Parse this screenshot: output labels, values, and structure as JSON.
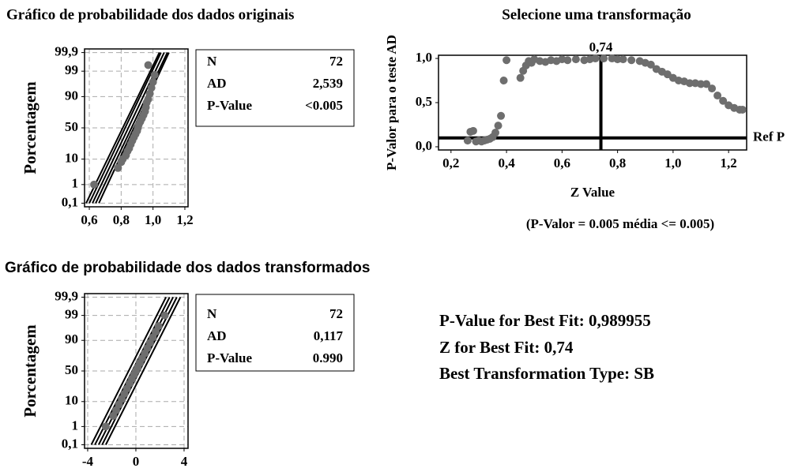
{
  "chart_data": [
    {
      "type": "probability",
      "title": "Gráfico de probabilidade dos dados originais",
      "ylabel": "Porcentagem",
      "xlim": [
        0.57,
        1.22
      ],
      "xticks": [
        {
          "value": 0.6,
          "label": "0,6"
        },
        {
          "value": 0.8,
          "label": "0,8"
        },
        {
          "value": 1.0,
          "label": "1,0"
        },
        {
          "value": 1.2,
          "label": "1,2"
        }
      ],
      "ylim": [
        0.06,
        99.94
      ],
      "yticks": [
        {
          "value": 0.1,
          "label": "0,1"
        },
        1,
        10,
        50,
        90,
        99,
        {
          "value": 99.9,
          "label": "99,9"
        }
      ],
      "yscale": "probability",
      "grid": true,
      "color": "#6e6e6e",
      "line_color": "#000000",
      "x": [
        0.63,
        0.78,
        0.8,
        0.81,
        0.83,
        0.84,
        0.85,
        0.86,
        0.87,
        0.88,
        0.89,
        0.9,
        0.905,
        0.91,
        0.92,
        0.93,
        0.94,
        0.95,
        0.955,
        0.96,
        0.97,
        0.98,
        0.99,
        1.0,
        1.01,
        0.97
      ],
      "values": [
        1,
        5,
        8,
        10,
        13,
        17,
        20,
        25,
        30,
        35,
        40,
        45,
        50,
        55,
        60,
        65,
        70,
        75,
        80,
        85,
        88,
        92,
        95,
        97,
        98.5,
        99.5
      ],
      "lines": [
        {
          "x": [
            0.62,
            1.07
          ],
          "values": [
            0.1,
            99.9
          ]
        },
        {
          "x": [
            0.6,
            1.05
          ],
          "values": [
            0.1,
            99.9
          ]
        },
        {
          "x": [
            0.64,
            1.09
          ],
          "values": [
            0.1,
            99.9
          ]
        },
        {
          "x": [
            0.58,
            1.04
          ],
          "values": [
            0.1,
            99.9
          ]
        },
        {
          "x": [
            0.66,
            1.1
          ],
          "values": [
            0.1,
            99.9
          ]
        }
      ]
    },
    {
      "type": "scatter",
      "title": "Selecione uma transformação",
      "xlabel": "Z Value",
      "ylabel": "P-Valor para o teste AD",
      "note": "(P-Valor = 0.005 média <= 0.005)",
      "xlim": [
        0.155,
        1.265
      ],
      "xticks": [
        {
          "value": 0.2,
          "label": "0,2"
        },
        {
          "value": 0.4,
          "label": "0,4"
        },
        {
          "value": 0.6,
          "label": "0,6"
        },
        {
          "value": 0.8,
          "label": "0,8"
        },
        {
          "value": 1.0,
          "label": "1,0"
        },
        {
          "value": 1.2,
          "label": "1,2"
        }
      ],
      "ylim": [
        -0.036,
        1.036
      ],
      "yticks": [
        {
          "value": 0,
          "label": "0,0"
        },
        {
          "value": 0.5,
          "label": "0,5"
        },
        {
          "value": 1.0,
          "label": "1,0"
        }
      ],
      "grid": false,
      "color": "#6e6e6e",
      "line_color": "#000000",
      "vline": {
        "value": 0.74,
        "label": "0,74"
      },
      "hline": {
        "value": 0.1,
        "label": "Ref P"
      },
      "x": [
        0.26,
        0.27,
        0.28,
        0.29,
        0.3,
        0.31,
        0.32,
        0.33,
        0.34,
        0.35,
        0.36,
        0.37,
        0.38,
        0.39,
        0.4,
        0.45,
        0.46,
        0.47,
        0.48,
        0.49,
        0.5,
        0.52,
        0.54,
        0.56,
        0.58,
        0.6,
        0.62,
        0.65,
        0.68,
        0.7,
        0.72,
        0.75,
        0.78,
        0.8,
        0.82,
        0.85,
        0.88,
        0.9,
        0.92,
        0.94,
        0.96,
        0.98,
        1.0,
        1.02,
        1.04,
        1.06,
        1.08,
        1.1,
        1.12,
        1.14,
        1.16,
        1.18,
        1.2,
        1.22,
        1.24,
        1.25
      ],
      "values": [
        0.07,
        0.17,
        0.18,
        0.06,
        0.07,
        0.06,
        0.07,
        0.08,
        0.09,
        0.11,
        0.16,
        0.24,
        0.35,
        0.75,
        0.98,
        0.78,
        0.86,
        0.92,
        0.97,
        0.95,
        0.99,
        0.97,
        0.96,
        0.98,
        0.97,
        0.99,
        0.98,
        0.99,
        0.98,
        0.99,
        1.0,
        1.0,
        1.0,
        0.99,
        0.99,
        0.98,
        0.97,
        0.95,
        0.93,
        0.88,
        0.85,
        0.82,
        0.78,
        0.75,
        0.74,
        0.72,
        0.72,
        0.71,
        0.71,
        0.66,
        0.58,
        0.52,
        0.47,
        0.44,
        0.42,
        0.42
      ]
    },
    {
      "type": "probability",
      "title": "Gráfico de probabilidade dos dados transformados",
      "ylabel": "Porcentagem",
      "xlim": [
        -4.26,
        4.33
      ],
      "xticks": [
        -4,
        0,
        4
      ],
      "ylim": [
        0.06,
        99.94
      ],
      "yticks": [
        {
          "value": 0.1,
          "label": "0,1"
        },
        1,
        10,
        50,
        90,
        99,
        {
          "value": 99.9,
          "label": "99,9"
        }
      ],
      "yscale": "probability",
      "grid": true,
      "color": "#6e6e6e",
      "line_color": "#000000",
      "x": [
        -2.5,
        -1.88,
        -1.64,
        -1.4,
        -1.17,
        -0.95,
        -0.74,
        -0.52,
        -0.33,
        -0.15,
        0,
        0.15,
        0.33,
        0.52,
        0.74,
        0.95,
        1.17,
        1.4,
        1.64,
        1.88,
        2.4
      ],
      "values": [
        1,
        3,
        5,
        8,
        12,
        17,
        23,
        30,
        37,
        44,
        50,
        56,
        63,
        70,
        77,
        83,
        88,
        92,
        95,
        97,
        99
      ],
      "lines": [
        {
          "x": [
            -3.09,
            3.09
          ],
          "values": [
            0.1,
            99.9
          ]
        },
        {
          "x": [
            -3.4,
            2.8
          ],
          "values": [
            0.1,
            99.9
          ]
        },
        {
          "x": [
            -2.8,
            3.4
          ],
          "values": [
            0.1,
            99.9
          ]
        },
        {
          "x": [
            -3.7,
            2.5
          ],
          "values": [
            0.1,
            99.9
          ]
        },
        {
          "x": [
            -2.5,
            3.7
          ],
          "values": [
            0.1,
            99.9
          ]
        }
      ]
    }
  ],
  "stats_original": {
    "rows": [
      [
        "N",
        "72"
      ],
      [
        "AD",
        "2,539"
      ],
      [
        "P-Value",
        "<0.005"
      ]
    ]
  },
  "stats_transformed": {
    "rows": [
      [
        "N",
        "72"
      ],
      [
        "AD",
        "0,117"
      ],
      [
        "P-Value",
        "0.990"
      ]
    ]
  },
  "summary": [
    "P-Value for Best Fit: 0,989955",
    "Z for Best Fit: 0,74",
    "Best Transformation Type: SB"
  ]
}
